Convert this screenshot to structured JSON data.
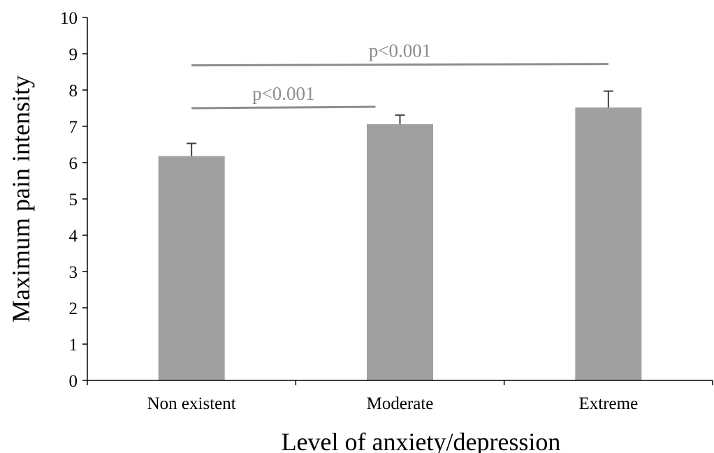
{
  "chart_data": {
    "type": "bar",
    "title": "",
    "xlabel": "Level of anxiety/depression",
    "ylabel": "Maximum pain intensity",
    "categories": [
      "Non existent",
      "Moderate",
      "Extreme"
    ],
    "values": [
      6.18,
      7.06,
      7.52
    ],
    "error_upper": [
      0.35,
      0.25,
      0.45
    ],
    "ylim": [
      0,
      10
    ],
    "yticks": [
      "0",
      "1",
      "2",
      "3",
      "4",
      "5",
      "6",
      "7",
      "8",
      "9",
      "10"
    ],
    "grid": false,
    "legend": "none",
    "bar_color": "#a0a0a0",
    "significance": [
      {
        "label": "p<0.001",
        "from": "Non existent",
        "to": "Moderate",
        "y": 7.5
      },
      {
        "label": "p<0.001",
        "from": "Non existent",
        "to": "Extreme",
        "y": 8.68
      }
    ],
    "annotation_color": "#8c8c8c"
  }
}
